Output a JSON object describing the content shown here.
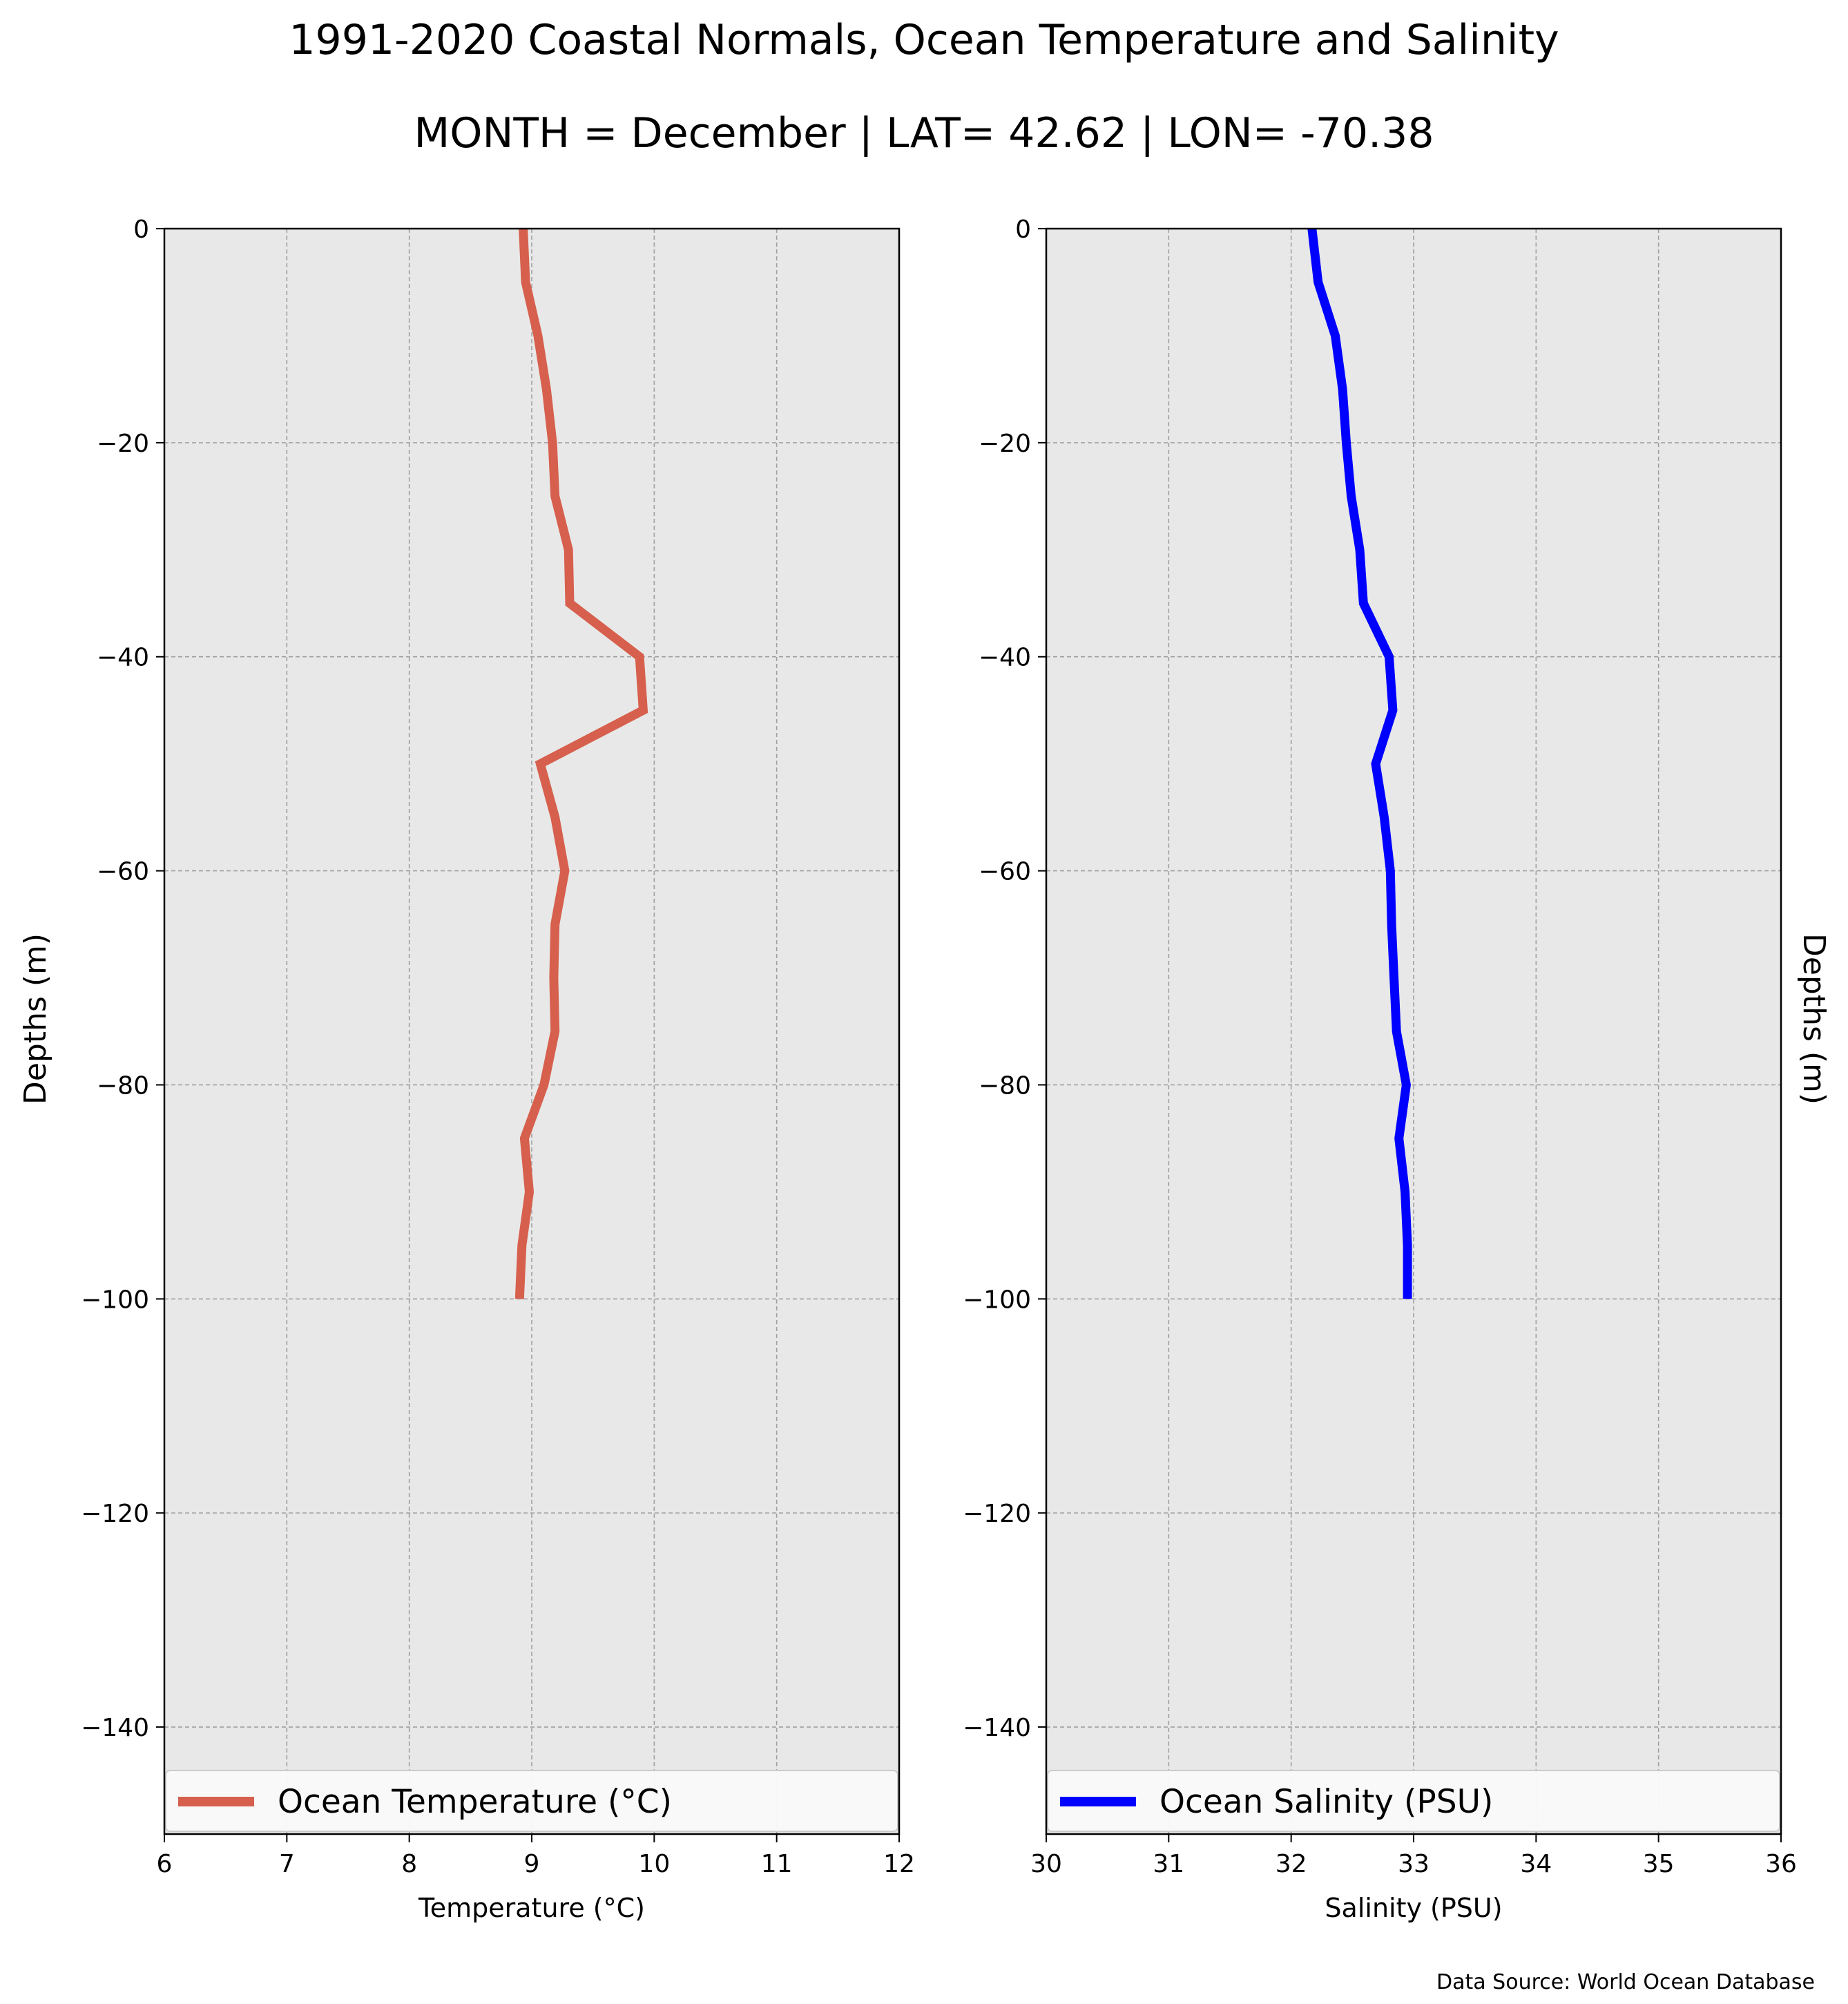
{
  "title": "1991-2020 Coastal Normals, Ocean Temperature and Salinity",
  "subtitle": "MONTH = December | LAT= 42.62 | LON= -70.38",
  "source": "Data Source: World Ocean Database",
  "colors": {
    "temperature": "#d6604d",
    "salinity": "#0000ff",
    "plot_bg": "#e8e8e8",
    "grid": "#a0a0a0"
  },
  "chart_data": [
    {
      "type": "line",
      "xlabel": "Temperature ($^\\circ$C)",
      "xlabel_display": "Temperature (°C)",
      "ylabel": "Depths (m)",
      "xlim": [
        6,
        12
      ],
      "ylim": [
        -150,
        0
      ],
      "xticks": [
        6,
        7,
        8,
        9,
        10,
        11,
        12
      ],
      "xtick_labels": [
        "6",
        "7",
        "8",
        "9",
        "10",
        "11",
        "12"
      ],
      "yticks": [
        0,
        -20,
        -40,
        -60,
        -80,
        -100,
        -120,
        -140
      ],
      "ytick_labels": [
        "0",
        "−20",
        "−40",
        "−60",
        "−80",
        "−100",
        "−120",
        "−140"
      ],
      "grid": true,
      "legend": "bottom",
      "series": [
        {
          "name": "Ocean Temperature ($^\\circ$C)",
          "name_display": "Ocean Temperature (°C)",
          "color": "#d6604d",
          "x": [
            8.93,
            8.95,
            9.05,
            9.12,
            9.17,
            9.19,
            9.3,
            9.31,
            9.88,
            9.91,
            9.07,
            9.19,
            9.27,
            9.19,
            9.18,
            9.19,
            9.1,
            8.94,
            8.98,
            8.92,
            8.9
          ],
          "y": [
            0,
            -5,
            -10,
            -15,
            -20,
            -25,
            -30,
            -35,
            -40,
            -45,
            -50,
            -55,
            -60,
            -65,
            -70,
            -75,
            -80,
            -85,
            -90,
            -95,
            -100
          ]
        }
      ]
    },
    {
      "type": "line",
      "xlabel": "Salinity (PSU)",
      "ylabel": "Depths (m)",
      "xlim": [
        30,
        36
      ],
      "ylim": [
        -150,
        0
      ],
      "xticks": [
        30,
        31,
        32,
        33,
        34,
        35,
        36
      ],
      "xtick_labels": [
        "30",
        "31",
        "32",
        "33",
        "34",
        "35",
        "36"
      ],
      "yticks": [
        0,
        -20,
        -40,
        -60,
        -80,
        -100,
        -120,
        -140
      ],
      "ytick_labels": [
        "0",
        "−20",
        "−40",
        "−60",
        "−80",
        "−100",
        "−120",
        "−140"
      ],
      "grid": true,
      "legend": "bottom",
      "series": [
        {
          "name": "Ocean Salinity (PSU)",
          "color": "#0000ff",
          "x": [
            32.17,
            32.22,
            32.36,
            32.42,
            32.45,
            32.49,
            32.56,
            32.59,
            32.8,
            32.83,
            32.69,
            32.76,
            32.81,
            32.82,
            32.84,
            32.86,
            32.94,
            32.88,
            32.93,
            32.95,
            32.95
          ],
          "y": [
            0,
            -5,
            -10,
            -15,
            -20,
            -25,
            -30,
            -35,
            -40,
            -45,
            -50,
            -55,
            -60,
            -65,
            -70,
            -75,
            -80,
            -85,
            -90,
            -95,
            -100
          ]
        }
      ]
    }
  ]
}
